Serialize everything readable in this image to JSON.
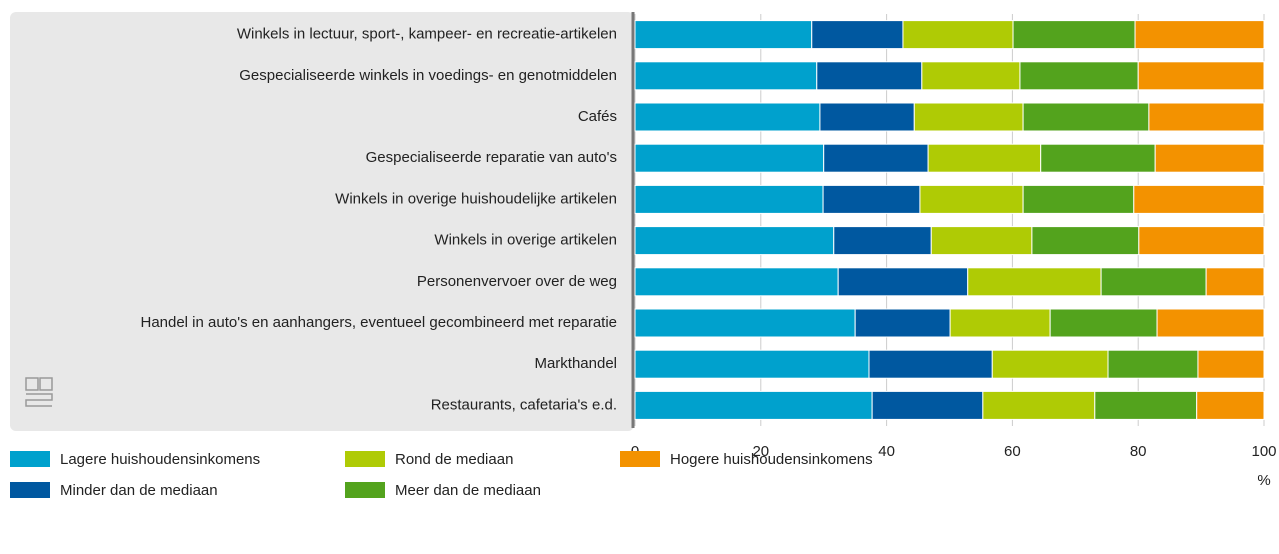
{
  "chart_data": {
    "type": "stacked_bar_horizontal",
    "categories": [
      "Winkels in lectuur, sport-, kampeer- en recreatie-artikelen",
      "Gespecialiseerde winkels in voedings- en genotmiddelen",
      "Cafés",
      "Gespecialiseerde reparatie van auto's",
      "Winkels in overige huishoudelijke artikelen",
      "Winkels in overige artikelen",
      "Personenvervoer over de weg",
      "Handel in auto's en aanhangers, eventueel gecombineerd met reparatie",
      "Markthandel",
      "Restaurants, cafetaria's e.d."
    ],
    "series": [
      {
        "name": "Lagere huishoudensinkomens",
        "color": "#00a1cd",
        "values": [
          28.1,
          28.9,
          29.4,
          30.0,
          29.9,
          31.6,
          32.3,
          35.0,
          37.2,
          37.7
        ]
      },
      {
        "name": "Minder dan de mediaan",
        "color": "#0058a0",
        "values": [
          14.5,
          16.7,
          15.0,
          16.6,
          15.4,
          15.5,
          20.6,
          15.1,
          19.6,
          17.6
        ]
      },
      {
        "name": "Rond de mediaan",
        "color": "#afcb05",
        "values": [
          17.5,
          15.6,
          17.3,
          17.9,
          16.4,
          16.0,
          21.2,
          15.9,
          18.4,
          17.8
        ]
      },
      {
        "name": "Meer dan de mediaan",
        "color": "#53a31d",
        "values": [
          19.4,
          18.8,
          20.0,
          18.2,
          17.6,
          17.0,
          16.7,
          17.0,
          14.3,
          16.2
        ]
      },
      {
        "name": "Hogere huishoudensinkomens",
        "color": "#f39200",
        "values": [
          20.5,
          20.0,
          18.3,
          17.3,
          20.7,
          19.9,
          9.2,
          17.0,
          10.5,
          10.7
        ]
      }
    ],
    "xlabel": "%",
    "xlim": [
      0,
      100
    ],
    "xticks": [
      0,
      20,
      40,
      60,
      80,
      100
    ],
    "grid": true
  }
}
